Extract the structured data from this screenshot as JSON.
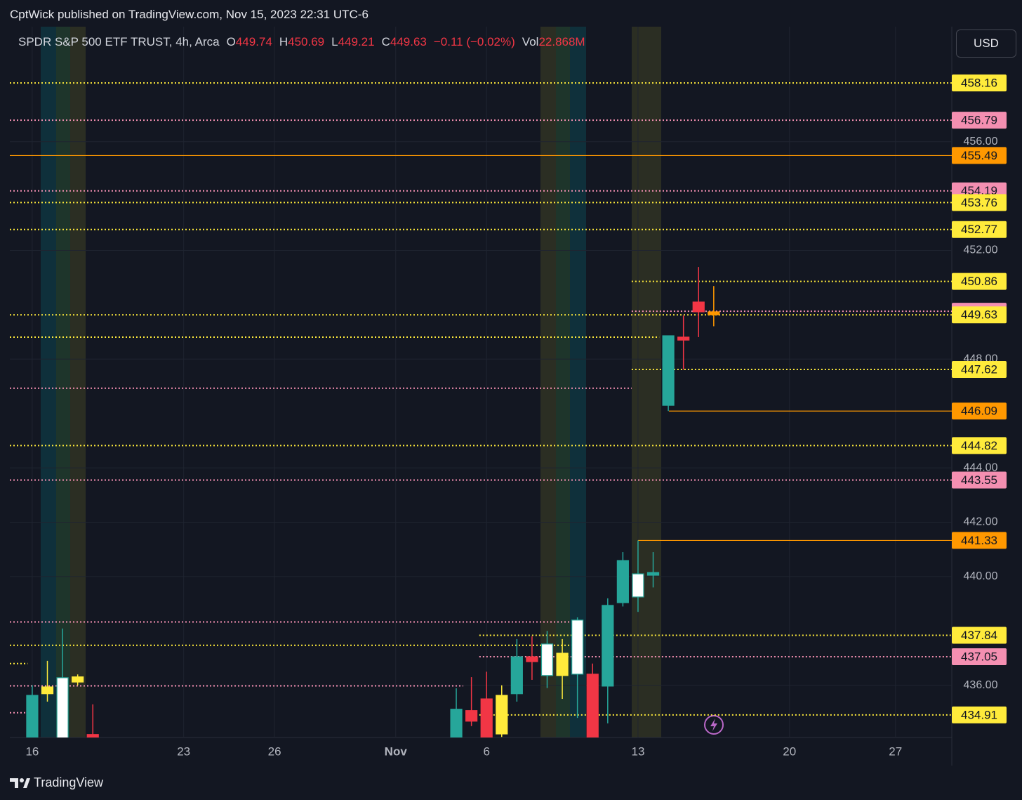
{
  "publish_line": "CptWick published on TradingView.com, Nov 15, 2023 22:31 UTC-6",
  "legend": {
    "symbol": "SPDR S&P 500 ETF TRUST, 4h, Arca",
    "fields": [
      {
        "key": "O",
        "value": "449.74"
      },
      {
        "key": "H",
        "value": "450.69"
      },
      {
        "key": "L",
        "value": "449.21"
      },
      {
        "key": "C",
        "value": "449.63"
      }
    ],
    "change": "−0.11 (−0.02%)",
    "vol_key": "Vol",
    "vol": "22.868M"
  },
  "currency": "USD",
  "brand": "TradingView",
  "chart_data": {
    "type": "candlestick",
    "xlim": [
      -0.74,
      30.36
    ],
    "ylim": [
      434.08,
      460.23
    ],
    "xticks": [
      {
        "value": 0,
        "label": "16"
      },
      {
        "value": 5,
        "label": "23"
      },
      {
        "value": 8,
        "label": "26"
      },
      {
        "value": 12,
        "label": "Nov"
      },
      {
        "value": 15,
        "label": "6"
      },
      {
        "value": 20,
        "label": "13"
      },
      {
        "value": 25,
        "label": "20"
      },
      {
        "value": 28.5,
        "label": "27"
      }
    ],
    "yticks": [
      {
        "value": 436,
        "label": "436.00"
      },
      {
        "value": 440,
        "label": "440.00"
      },
      {
        "value": 442,
        "label": "442.00"
      },
      {
        "value": 444,
        "label": "444.00"
      },
      {
        "value": 448,
        "label": "448.00"
      },
      {
        "value": 452,
        "label": "452.00"
      },
      {
        "value": 456,
        "label": "456.00"
      }
    ],
    "grid": true,
    "x": [
      0,
      0.5,
      1,
      1.5,
      2,
      14,
      14.5,
      15,
      15.5,
      16,
      16.5,
      17,
      17.5,
      18,
      18.5,
      19,
      19.5,
      20,
      20.5,
      21,
      21.5,
      22,
      22.5
    ],
    "open": [
      433.8,
      435.69,
      434.0,
      436.12,
      434.19,
      433.9,
      435.07,
      435.5,
      434.21,
      435.69,
      437.05,
      436.36,
      436.36,
      436.41,
      436.41,
      435.97,
      439.04,
      439.25,
      440.05,
      446.3,
      448.81,
      450.1,
      449.74
    ],
    "high": [
      436.0,
      436.9,
      438.09,
      436.4,
      435.3,
      435.89,
      436.3,
      436.5,
      436.0,
      437.7,
      437.8,
      438.0,
      437.7,
      438.5,
      436.8,
      439.2,
      440.9,
      441.33,
      440.9,
      448.86,
      449.6,
      451.39,
      450.69
    ],
    "low": [
      433.5,
      435.4,
      433.8,
      436.0,
      433.9,
      433.8,
      434.5,
      433.8,
      434.1,
      435.4,
      436.2,
      435.9,
      435.5,
      434.8,
      433.5,
      434.6,
      438.9,
      438.7,
      439.6,
      446.09,
      447.62,
      448.81,
      449.21
    ],
    "close": [
      435.63,
      435.94,
      436.28,
      436.31,
      434.05,
      435.12,
      434.68,
      433.9,
      435.63,
      437.05,
      436.87,
      437.52,
      437.18,
      438.4,
      433.6,
      438.94,
      440.59,
      440.1,
      440.15,
      448.86,
      448.7,
      449.74,
      449.63
    ],
    "colors": [
      "#26a69a",
      "#ffeb3b",
      "#ffffff",
      "#ffeb3b",
      "#f23645",
      "#26a69a",
      "#f23645",
      "#f23645",
      "#ffeb3b",
      "#26a69a",
      "#f23645",
      "#ffffff",
      "#ffeb3b",
      "#ffffff",
      "#f23645",
      "#26a69a",
      "#26a69a",
      "#ffffff",
      "#26a69a",
      "#26a69a",
      "#f23645",
      "#f23645",
      "#ff9800"
    ],
    "levels": [
      {
        "value": 458.16,
        "color": "#ffeb3b",
        "style": "dotted",
        "from": -0.74
      },
      {
        "value": 456.79,
        "color": "#f48fb1",
        "style": "dotted",
        "from": -0.74
      },
      {
        "value": 455.49,
        "color": "#ff9800",
        "style": "solid",
        "from": -0.74
      },
      {
        "value": 454.19,
        "color": "#f48fb1",
        "style": "dotted",
        "from": -0.74
      },
      {
        "value": 453.76,
        "color": "#ffeb3b",
        "style": "dotted",
        "from": -0.74
      },
      {
        "value": 452.77,
        "color": "#ffeb3b",
        "style": "dotted",
        "from": -0.74
      },
      {
        "value": 450.86,
        "color": "#ffeb3b",
        "style": "dotted",
        "from": 19.79
      },
      {
        "value": 449.76,
        "color": "#f48fb1",
        "style": "dotted",
        "from": 19.79
      },
      {
        "value": 449.63,
        "color": "#ffeb3b",
        "style": "dotted",
        "from": -0.74
      },
      {
        "value": 447.62,
        "color": "#ffeb3b",
        "style": "dotted",
        "from": 19.79
      },
      {
        "value": 446.09,
        "color": "#ff9800",
        "style": "solid",
        "from": 21.02
      },
      {
        "value": 444.82,
        "color": "#ffeb3b",
        "style": "dotted",
        "from": -0.74
      },
      {
        "value": 443.55,
        "color": "#f48fb1",
        "style": "dotted",
        "from": -0.74
      },
      {
        "value": 441.33,
        "color": "#ff9800",
        "style": "solid",
        "from": 20.0
      },
      {
        "value": 437.84,
        "color": "#ffeb3b",
        "style": "dotted",
        "from": 14.76
      },
      {
        "value": 437.05,
        "color": "#f48fb1",
        "style": "dotted",
        "from": 14.76
      },
      {
        "value": 434.91,
        "color": "#ffeb3b",
        "style": "dotted",
        "from": 14.76
      }
    ],
    "other_levels": [
      {
        "value": 448.81,
        "color": "#ffeb3b",
        "style": "dotted",
        "from": -0.74,
        "to": 20.7
      },
      {
        "value": 446.93,
        "color": "#f48fb1",
        "style": "dotted",
        "from": -0.74,
        "to": 19.79
      },
      {
        "value": 438.33,
        "color": "#f48fb1",
        "style": "dotted",
        "from": -0.74,
        "to": 17.94
      },
      {
        "value": 437.47,
        "color": "#ffeb3b",
        "style": "dotted",
        "from": -0.74,
        "to": 17.94
      },
      {
        "value": 436.8,
        "color": "#ffeb3b",
        "style": "dotted",
        "from": -0.74,
        "to": -0.15
      },
      {
        "value": 435.98,
        "color": "#f48fb1",
        "style": "dotted",
        "from": -0.74,
        "to": 14.23
      },
      {
        "value": 434.99,
        "color": "#f48fb1",
        "style": "dotted",
        "from": -0.74,
        "to": -0.15
      }
    ]
  }
}
